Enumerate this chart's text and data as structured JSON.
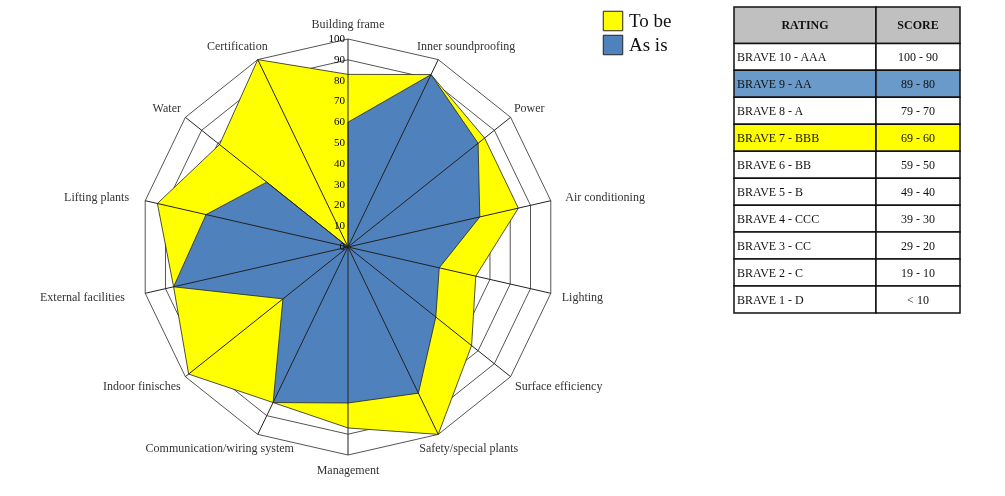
{
  "chart_data": [
    {
      "type": "radar",
      "categories": [
        "Building frame",
        "Inner soundproofing",
        "Power",
        "Air conditioning",
        "Lighting",
        "Surface efficiency",
        "Safety/special plants",
        "Management",
        "Communication/wiring system",
        "Indoor finisches",
        "External facilities",
        "Lifting plants",
        "Water",
        "Certification"
      ],
      "series": [
        {
          "name": "To be",
          "color": "#ffff00",
          "values": [
            83,
            92,
            84,
            84,
            63,
            76,
            100,
            87,
            83,
            98,
            86,
            94,
            79,
            100
          ]
        },
        {
          "name": "As is",
          "color": "#4f81bd",
          "values": [
            60,
            92,
            80,
            65,
            45,
            54,
            78,
            75,
            83,
            40,
            86,
            70,
            50,
            0
          ]
        }
      ],
      "ylim": [
        0,
        100
      ],
      "yticks": [
        0,
        10,
        20,
        30,
        40,
        50,
        60,
        70,
        80,
        90,
        100
      ],
      "legend": "top right"
    },
    {
      "type": "other",
      "annotations": [
        "RATING",
        "SCORE"
      ],
      "categories": [
        "BRAVE 10 - AAA",
        "BRAVE 9 - AA",
        "BRAVE 8 - A",
        "BRAVE 7 - BBB",
        "BRAVE 6 - BB",
        "BRAVE 5 - B",
        "BRAVE 4 - CCC",
        "BRAVE 3 - CC",
        "BRAVE 2 - C",
        "BRAVE 1 - D"
      ],
      "cell_labels": [
        [
          "100 - 90"
        ],
        [
          "89 - 80"
        ],
        [
          "79 - 70"
        ],
        [
          "69 - 60"
        ],
        [
          "59 - 50"
        ],
        [
          "49 - 40"
        ],
        [
          "39 - 30"
        ],
        [
          "29 - 20"
        ],
        [
          "19 - 10"
        ],
        [
          "< 10"
        ]
      ],
      "colors": [
        null,
        "#6a9ac9",
        null,
        "#ffff00",
        null,
        null,
        null,
        null,
        null,
        null
      ]
    }
  ]
}
